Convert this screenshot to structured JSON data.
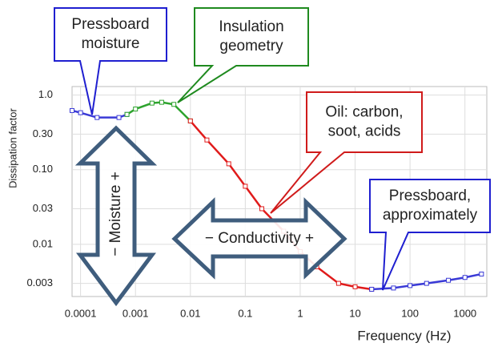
{
  "chart_data": {
    "type": "line",
    "xlabel": "Frequency (Hz)",
    "ylabel": "Dissipation factor",
    "xscale": "log",
    "yscale": "log",
    "grid": true,
    "xlim": [
      7e-05,
      2500
    ],
    "ylim": [
      0.002,
      1.3
    ],
    "xticks": [
      0.0001,
      0.001,
      0.01,
      0.1,
      1,
      10,
      100,
      1000
    ],
    "yticks": [
      {
        "value": 1,
        "label": "1.0"
      },
      {
        "value": 0.3,
        "label": "0.30"
      },
      {
        "value": 0.1,
        "label": "0.10"
      },
      0.03,
      0.01,
      0.003
    ],
    "series": [
      {
        "color": "#3a3ad6",
        "x": [
          7e-05,
          0.0001,
          0.0002,
          0.0005,
          0.0007
        ],
        "values": [
          0.62,
          0.58,
          0.5,
          0.5,
          0.55
        ]
      },
      {
        "color": "#2ea32e",
        "x": [
          0.0007,
          0.001,
          0.002,
          0.003,
          0.005,
          0.01
        ],
        "values": [
          0.55,
          0.65,
          0.78,
          0.8,
          0.75,
          0.45
        ]
      },
      {
        "color": "#e01b1b",
        "x": [
          0.01,
          0.02,
          0.05,
          0.1,
          0.2,
          0.5,
          1,
          2,
          5,
          10,
          20
        ],
        "values": [
          0.45,
          0.25,
          0.12,
          0.06,
          0.03,
          0.015,
          0.008,
          0.005,
          0.003,
          0.0027,
          0.0025
        ]
      },
      {
        "color": "#3a3ad6",
        "x": [
          20,
          50,
          100,
          200,
          500,
          1000,
          2000
        ],
        "values": [
          0.0025,
          0.0026,
          0.0028,
          0.003,
          0.0033,
          0.0036,
          0.004
        ]
      }
    ],
    "annotations": [
      {
        "lines": [
          "Pressboard",
          "moisture"
        ],
        "color": "#1f1fd0"
      },
      {
        "lines": [
          "Insulation",
          "geometry"
        ],
        "color": "#1f8a1f"
      },
      {
        "lines": [
          "Oil: carbon,",
          "soot, acids"
        ],
        "color": "#d01b1b"
      },
      {
        "lines": [
          "Pressboard,",
          "approximately"
        ],
        "color": "#1f1fd0"
      }
    ],
    "arrows": [
      "− Moisture +",
      "− Conductivity +"
    ]
  }
}
